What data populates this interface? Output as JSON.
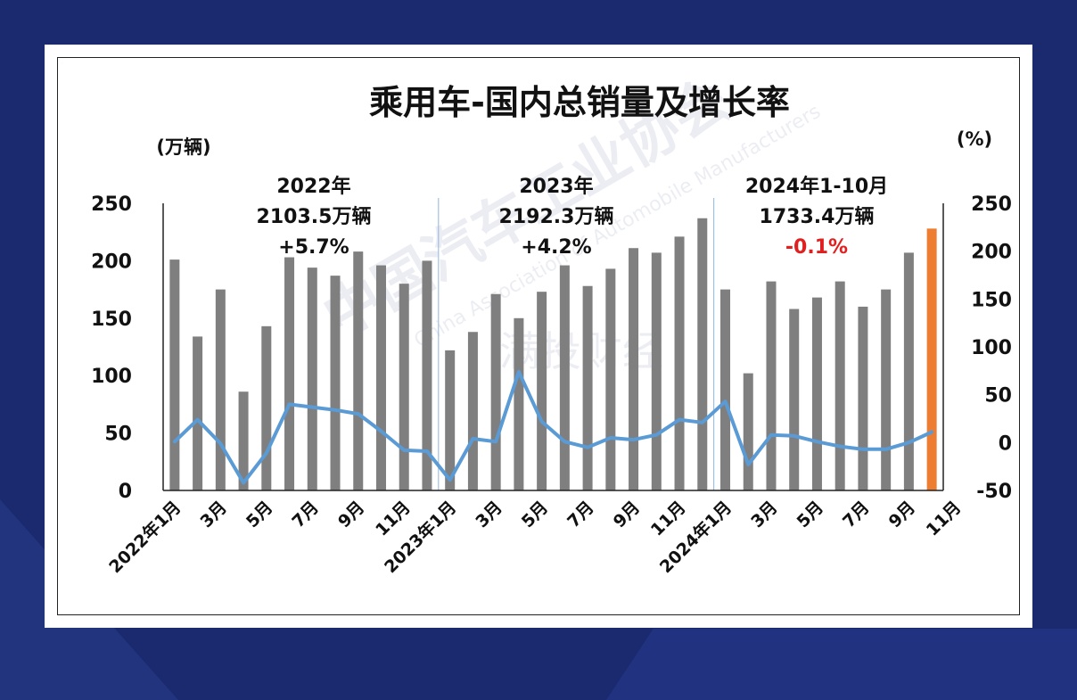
{
  "chart_data": {
    "type": "bar",
    "title": "乘用车-国内总销量及增长率",
    "y_unit_left": "(万辆)",
    "y_unit_right": "(%)",
    "yticks_left": [
      "250",
      "200",
      "150",
      "100",
      "50",
      "0"
    ],
    "yticks_right": [
      "250",
      "200",
      "150",
      "100",
      "50",
      "0",
      "-50"
    ],
    "ylim_left": [
      0,
      250
    ],
    "ylim_right": [
      -50,
      250
    ],
    "x_tick_labels": [
      "2022年1月",
      "3月",
      "5月",
      "7月",
      "9月",
      "11月",
      "2023年1月",
      "3月",
      "5月",
      "7月",
      "9月",
      "11月",
      "2024年1月",
      "3月",
      "5月",
      "7月",
      "9月",
      "11月"
    ],
    "x": [
      "2022-01",
      "2022-02",
      "2022-03",
      "2022-04",
      "2022-05",
      "2022-06",
      "2022-07",
      "2022-08",
      "2022-09",
      "2022-10",
      "2022-11",
      "2022-12",
      "2023-01",
      "2023-02",
      "2023-03",
      "2023-04",
      "2023-05",
      "2023-06",
      "2023-07",
      "2023-08",
      "2023-09",
      "2023-10",
      "2023-11",
      "2023-12",
      "2024-01",
      "2024-02",
      "2024-03",
      "2024-04",
      "2024-05",
      "2024-06",
      "2024-07",
      "2024-08",
      "2024-09",
      "2024-10"
    ],
    "series": [
      {
        "type": "bar",
        "axis": "left",
        "values": [
          201,
          134,
          175,
          86,
          143,
          203,
          194,
          187,
          208,
          196,
          180,
          200,
          122,
          138,
          171,
          150,
          173,
          196,
          178,
          193,
          211,
          207,
          221,
          237,
          175,
          102,
          182,
          158,
          168,
          182,
          160,
          175,
          207,
          228
        ],
        "color": "#7f7f7f",
        "highlight_last_color": "#ed7d31"
      },
      {
        "type": "line",
        "axis": "right",
        "values": [
          1,
          24,
          -1,
          -42,
          -11,
          40,
          37,
          34,
          30,
          12,
          -8,
          -9,
          -39,
          4,
          1,
          74,
          22,
          1,
          -5,
          5,
          3,
          8,
          24,
          21,
          43,
          -23,
          8,
          7,
          1,
          -4,
          -7,
          -7,
          0,
          11
        ],
        "color": "#5b9bd5"
      }
    ],
    "annotations": [
      {
        "lines": [
          "2022年",
          "2103.5万辆",
          "+5.7%"
        ]
      },
      {
        "lines": [
          "2023年",
          "2192.3万辆",
          "+4.2%"
        ]
      },
      {
        "lines": [
          "2024年1-10月",
          "1733.4万辆",
          "-0.1%"
        ]
      }
    ],
    "grid": false
  },
  "watermark": {
    "text_cn": "中国汽车工业协会",
    "text_en": "China Association of Automobile Manufacturers",
    "text_brand": "满投财经"
  }
}
